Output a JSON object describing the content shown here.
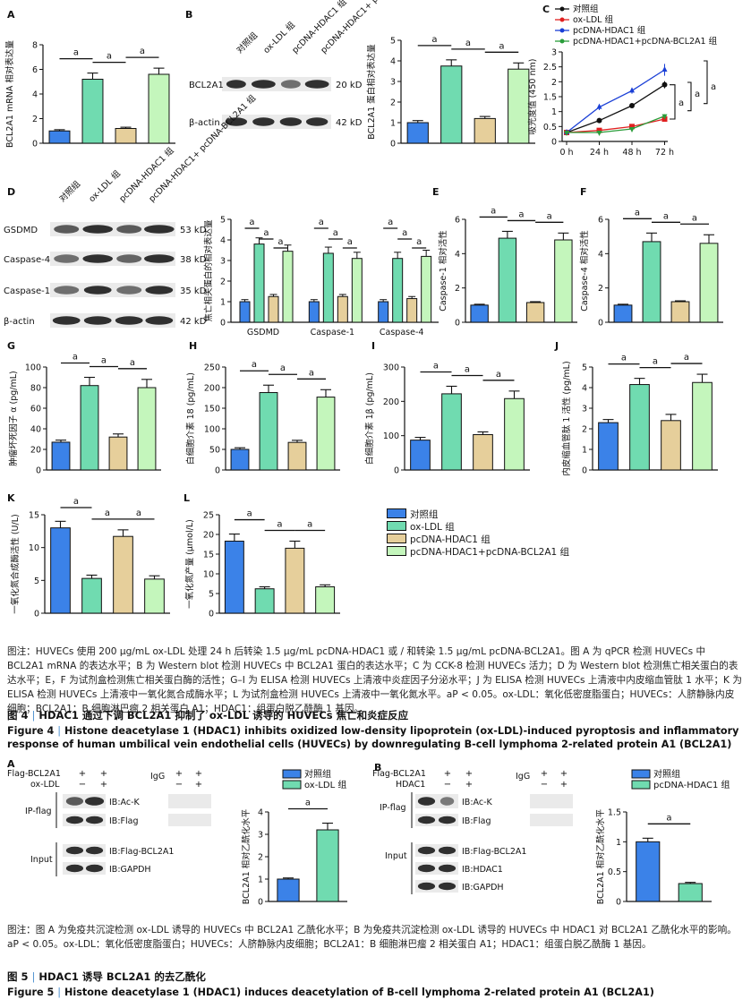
{
  "colors": {
    "control": "#3b82e8",
    "oxldl": "#70dbb0",
    "hdac1": "#e6cf9b",
    "hdac1_bcl2a1": "#c4f6bc",
    "ink": "#111111"
  },
  "fig4": {
    "panel_letters": [
      "A",
      "B",
      "C",
      "D",
      "E",
      "F",
      "G",
      "H",
      "I",
      "J",
      "K",
      "L"
    ],
    "group_labels": [
      "对照组",
      "ox-LDL 组",
      "pcDNA-HDAC1 组",
      "pcDNA-HDAC1+ pcDNA-BCL2A1 组"
    ],
    "panelB_proteins": [
      "BCL2A1",
      "β-actin"
    ],
    "panelB_kd": [
      "20 kD",
      "42 kD"
    ],
    "panelD_proteins": [
      "GSDMD",
      "Caspase-4",
      "Caspase-1",
      "β-actin"
    ],
    "panelD_kd": [
      "53 kD",
      "38 kD",
      "35 kD",
      "42 kD"
    ],
    "sig_mark": "a",
    "legend": [
      "对照组",
      "ox-LDL 组",
      "pcDNA-HDAC1 组",
      "pcDNA-HDAC1+pcDNA-BCL2A1 组"
    ],
    "caption": "图注：HUVECs 使用 200 μg/mL ox-LDL 处理 24 h 后转染 1.5 μg/mL pcDNA-HDAC1 或 / 和转染 1.5 μg/mL pcDNA-BCL2A1。图 A 为 qPCR 检测 HUVECs 中 BCL2A1 mRNA 的表达水平；B 为 Western blot 检测 HUVECs 中 BCL2A1 蛋白的表达水平；C 为 CCK-8 检测 HUVECs 活力；D 为 Western blot 检测焦亡相关蛋白的表达水平；E，F 为试剂盒检测焦亡相关蛋白酶的活性；G–I 为 ELISA 检测 HUVECs 上清液中炎症因子分泌水平；J 为 ELISA 检测 HUVECs 上清液中内皮缩血管肽 1 水平；K 为 ELISA 检测 HUVECs 上清液中一氧化氮合成酶水平；L 为试剂盒检测 HUVECs 上清液中一氧化氮水平。aP < 0.05。ox-LDL：氧化低密度脂蛋白；HUVECs：人脐静脉内皮细胞；BCL2A1：B 细胞淋巴瘤 2 相关蛋白 A1；HDAC1：组蛋白脱乙酰酶 1 基因。",
    "title_num": "图 4",
    "title_cn": "HDAC1 通过下调 BCL2A1 抑制了 ox-LDL 诱导的 HUVECs 焦亡和炎症反应",
    "title_en_num": "Figure 4",
    "title_en": "Histone deacetylase 1 (HDAC1) inhibits oxidized low-density lipoprotein (ox-LDL)-induced pyroptosis and inflammatory response of human umbilical vein endothelial cells (HUVECs) by downregulating B-cell lymphoma 2-related protein A1 (BCL2A1)"
  },
  "fig5": {
    "panel_letters": [
      "A",
      "B"
    ],
    "A": {
      "row_labels": [
        "Flag-BCL2A1",
        "ox-LDL"
      ],
      "signs_main": [
        [
          "+",
          "+"
        ],
        [
          "−",
          "+"
        ]
      ],
      "igg_label": "IgG",
      "signs_igg": [
        [
          "+",
          "+"
        ],
        [
          "−",
          "+"
        ]
      ],
      "ip_label": "IP-flag",
      "input_label": "Input",
      "ib_labels": [
        "IB:Ac-K",
        "IB:Flag",
        "IB:Flag-BCL2A1",
        "IB:GAPDH"
      ],
      "legend": [
        "对照组",
        "ox-LDL 组"
      ]
    },
    "B": {
      "row_labels": [
        "Flag-BCL2A1",
        "HDAC1"
      ],
      "signs_main": [
        [
          "+",
          "+"
        ],
        [
          "−",
          "+"
        ]
      ],
      "igg_label": "IgG",
      "signs_igg": [
        [
          "+",
          "+"
        ],
        [
          "−",
          "+"
        ]
      ],
      "ip_label": "IP-flag",
      "input_label": "Input",
      "ib_labels": [
        "IB:Ac-K",
        "IB:Flag",
        "IB:Flag-BCL2A1",
        "IB:HDAC1",
        "IB:GAPDH"
      ],
      "legend": [
        "对照组",
        "pcDNA-HDAC1 组"
      ]
    },
    "caption": "图注：图 A 为免疫共沉淀检测 ox-LDL 诱导的 HUVECs 中 BCL2A1 乙酰化水平；B 为免疫共沉淀检测 ox-LDL 诱导的 HUVECs 中 HDAC1 对 BCL2A1 乙酰化水平的影响。aP < 0.05。ox-LDL：氧化低密度脂蛋白；HUVECs：人脐静脉内皮细胞；BCL2A1：B 细胞淋巴瘤 2 相关蛋白 A1；HDAC1：组蛋白脱乙酰酶 1 基因。",
    "title_num": "图 5",
    "title_cn": "HDAC1 诱导 BCL2A1 的去乙酰化",
    "title_en_num": "Figure 5",
    "title_en": "Histone deacetylase 1 (HDAC1) induces deacetylation of B-cell lymphoma 2-related protein A1 (BCL2A1)"
  },
  "chart_data": [
    {
      "panel": "A",
      "type": "bar",
      "categories": [
        "对照组",
        "ox-LDL 组",
        "pcDNA-HDAC1 组",
        "pcDNA-HDAC1+pcDNA-BCL2A1 组"
      ],
      "values": [
        1.0,
        5.2,
        1.2,
        5.6
      ],
      "errors": [
        0.1,
        0.5,
        0.1,
        0.5
      ],
      "ylabel": "BCL2A1 mRNA 相对表达量",
      "ylim": [
        0,
        8
      ],
      "yticks": [
        0,
        2,
        4,
        6,
        8
      ],
      "sig": [
        [
          0,
          1
        ],
        [
          1,
          2
        ],
        [
          2,
          3
        ]
      ]
    },
    {
      "panel": "B",
      "type": "bar",
      "categories": [
        "对照组",
        "ox-LDL 组",
        "pcDNA-HDAC1 组",
        "pcDNA-HDAC1+pcDNA-BCL2A1 组"
      ],
      "values": [
        1.0,
        3.75,
        1.2,
        3.6
      ],
      "errors": [
        0.1,
        0.3,
        0.1,
        0.3
      ],
      "ylabel": "BCL2A1 蛋白相对表达量",
      "ylim": [
        0,
        5
      ],
      "yticks": [
        0,
        1,
        2,
        3,
        4,
        5
      ],
      "sig": [
        [
          0,
          1
        ],
        [
          1,
          2
        ],
        [
          2,
          3
        ]
      ]
    },
    {
      "panel": "C",
      "type": "line",
      "x": [
        "0 h",
        "24 h",
        "48 h",
        "72 h"
      ],
      "series": [
        {
          "name": "对照组",
          "values": [
            0.3,
            0.7,
            1.2,
            1.9
          ],
          "errors": [
            0.03,
            0.06,
            0.08,
            0.12
          ],
          "marker": "circle",
          "color": "#111111"
        },
        {
          "name": "ox-LDL 组",
          "values": [
            0.3,
            0.37,
            0.5,
            0.75
          ],
          "errors": [
            0.03,
            0.04,
            0.04,
            0.06
          ],
          "marker": "square",
          "color": "#e02020"
        },
        {
          "name": "pcDNA-HDAC1 组",
          "values": [
            0.3,
            1.15,
            1.7,
            2.4
          ],
          "errors": [
            0.03,
            0.1,
            0.1,
            0.2
          ],
          "marker": "triangle",
          "color": "#1a3fd6"
        },
        {
          "name": "pcDNA-HDAC1+pcDNA-BCL2A1 组",
          "values": [
            0.3,
            0.3,
            0.42,
            0.85
          ],
          "errors": [
            0.03,
            0.03,
            0.04,
            0.06
          ],
          "marker": "triangle-down",
          "color": "#2a9d3a"
        }
      ],
      "ylabel": "吸光度值 (450 nm)",
      "ylim": [
        0,
        3
      ],
      "yticks": [
        0,
        0.5,
        1.0,
        1.5,
        2.0,
        2.5,
        3.0
      ],
      "brackets": [
        "a",
        "a",
        "a"
      ]
    },
    {
      "panel": "D",
      "type": "bar",
      "categories": [
        "GSDMD",
        "Caspase-1",
        "Caspase-4"
      ],
      "series": [
        {
          "name": "对照组",
          "values": [
            1.0,
            1.0,
            1.0
          ]
        },
        {
          "name": "ox-LDL 组",
          "values": [
            3.8,
            3.35,
            3.1
          ]
        },
        {
          "name": "pcDNA-HDAC1 组",
          "values": [
            1.25,
            1.25,
            1.15
          ]
        },
        {
          "name": "pcDNA-HDAC1+pcDNA-BCL2A1 组",
          "values": [
            3.45,
            3.1,
            3.2
          ]
        }
      ],
      "errors": [
        [
          0.1,
          0.3,
          0.1,
          0.3
        ],
        [
          0.1,
          0.3,
          0.1,
          0.3
        ],
        [
          0.1,
          0.3,
          0.1,
          0.3
        ]
      ],
      "ylabel": "焦亡相关蛋白的相对表达量",
      "ylim": [
        0,
        5
      ],
      "yticks": [
        0,
        1,
        2,
        3,
        4,
        5
      ]
    },
    {
      "panel": "E",
      "type": "bar",
      "categories": [
        "对照组",
        "ox-LDL 组",
        "pcDNA-HDAC1 组",
        "pcDNA-HDAC1+pcDNA-BCL2A1 组"
      ],
      "values": [
        1.0,
        4.9,
        1.15,
        4.8
      ],
      "errors": [
        0.05,
        0.4,
        0.05,
        0.4
      ],
      "ylabel": "Caspase-1 相对活性",
      "ylim": [
        0,
        6
      ],
      "yticks": [
        0,
        2,
        4,
        6
      ],
      "sig": [
        [
          0,
          1
        ],
        [
          1,
          2
        ],
        [
          2,
          3
        ]
      ]
    },
    {
      "panel": "F",
      "type": "bar",
      "categories": [
        "对照组",
        "ox-LDL 组",
        "pcDNA-HDAC1 组",
        "pcDNA-HDAC1+pcDNA-BCL2A1 组"
      ],
      "values": [
        1.0,
        4.7,
        1.2,
        4.6
      ],
      "errors": [
        0.05,
        0.5,
        0.05,
        0.5
      ],
      "ylabel": "Caspase-4 相对活性",
      "ylim": [
        0,
        6
      ],
      "yticks": [
        0,
        2,
        4,
        6
      ],
      "sig": [
        [
          0,
          1
        ],
        [
          1,
          2
        ],
        [
          2,
          3
        ]
      ]
    },
    {
      "panel": "G",
      "type": "bar",
      "categories": [
        "对照组",
        "ox-LDL 组",
        "pcDNA-HDAC1 组",
        "pcDNA-HDAC1+pcDNA-BCL2A1 组"
      ],
      "values": [
        27,
        82,
        32,
        80
      ],
      "errors": [
        2,
        8,
        3,
        8
      ],
      "ylabel": "肿瘤坏死因子 α (pg/mL)",
      "ylim": [
        0,
        100
      ],
      "yticks": [
        0,
        20,
        40,
        60,
        80,
        100
      ],
      "sig": [
        [
          0,
          1
        ],
        [
          1,
          2
        ],
        [
          2,
          3
        ]
      ]
    },
    {
      "panel": "H",
      "type": "bar",
      "categories": [
        "对照组",
        "ox-LDL 组",
        "pcDNA-HDAC1 组",
        "pcDNA-HDAC1+pcDNA-BCL2A1 组"
      ],
      "values": [
        50,
        188,
        67,
        177
      ],
      "errors": [
        4,
        18,
        5,
        18
      ],
      "ylabel": "白细胞介素 18 (pg/mL)",
      "ylim": [
        0,
        250
      ],
      "yticks": [
        0,
        50,
        100,
        150,
        200,
        250
      ],
      "sig": [
        [
          0,
          1
        ],
        [
          1,
          2
        ],
        [
          2,
          3
        ]
      ]
    },
    {
      "panel": "I",
      "type": "bar",
      "categories": [
        "对照组",
        "ox-LDL 组",
        "pcDNA-HDAC1 组",
        "pcDNA-HDAC1+pcDNA-BCL2A1 组"
      ],
      "values": [
        87,
        222,
        103,
        208
      ],
      "errors": [
        8,
        22,
        8,
        22
      ],
      "ylabel": "白细胞介素 1β (pg/mL)",
      "ylim": [
        0,
        300
      ],
      "yticks": [
        0,
        100,
        200,
        300
      ],
      "sig": [
        [
          0,
          1
        ],
        [
          1,
          2
        ],
        [
          2,
          3
        ]
      ]
    },
    {
      "panel": "J",
      "type": "bar",
      "categories": [
        "对照组",
        "ox-LDL 组",
        "pcDNA-HDAC1 组",
        "pcDNA-HDAC1+pcDNA-BCL2A1 组"
      ],
      "values": [
        2.3,
        4.15,
        2.4,
        4.25
      ],
      "errors": [
        0.15,
        0.3,
        0.3,
        0.4
      ],
      "ylabel": "内皮缩血管肽 1 活性 (pg/mL)",
      "ylim": [
        0,
        5
      ],
      "yticks": [
        0,
        1,
        2,
        3,
        4,
        5
      ],
      "sig": [
        [
          0,
          1
        ],
        [
          1,
          2
        ],
        [
          2,
          3
        ]
      ]
    },
    {
      "panel": "K",
      "type": "bar",
      "categories": [
        "对照组",
        "ox-LDL 组",
        "pcDNA-HDAC1 组",
        "pcDNA-HDAC1+pcDNA-BCL2A1 组"
      ],
      "values": [
        13.0,
        5.3,
        11.7,
        5.2
      ],
      "errors": [
        1.0,
        0.5,
        1.0,
        0.5
      ],
      "ylabel": "一氧化氮合成酶活性 (U/L)",
      "ylim": [
        0,
        15
      ],
      "yticks": [
        0,
        5,
        10,
        15
      ],
      "sig": [
        [
          0,
          1
        ],
        [
          1,
          2
        ],
        [
          2,
          3
        ]
      ]
    },
    {
      "panel": "L",
      "type": "bar",
      "categories": [
        "对照组",
        "ox-LDL 组",
        "pcDNA-HDAC1 组",
        "pcDNA-HDAC1+pcDNA-BCL2A1 组"
      ],
      "values": [
        18.3,
        6.2,
        16.5,
        6.7
      ],
      "errors": [
        1.8,
        0.5,
        1.8,
        0.5
      ],
      "ylabel": "一氧化氮产量 (μmol/L)",
      "ylim": [
        0,
        25
      ],
      "yticks": [
        0,
        5,
        10,
        15,
        20,
        25
      ],
      "sig": [
        [
          0,
          1
        ],
        [
          1,
          2
        ],
        [
          2,
          3
        ]
      ]
    },
    {
      "panel": "5A",
      "type": "bar",
      "categories": [
        "对照组",
        "ox-LDL 组"
      ],
      "values": [
        1.0,
        3.2
      ],
      "errors": [
        0.05,
        0.3
      ],
      "ylabel": "BCL2A1 相对乙酰化水平",
      "ylim": [
        0,
        4
      ],
      "yticks": [
        0,
        1,
        2,
        3,
        4
      ],
      "sig": [
        [
          0,
          1
        ]
      ]
    },
    {
      "panel": "5B",
      "type": "bar",
      "categories": [
        "对照组",
        "pcDNA-HDAC1 组"
      ],
      "values": [
        1.0,
        0.3
      ],
      "errors": [
        0.06,
        0.02
      ],
      "ylabel": "BCL2A1 相对乙酰化水平",
      "ylim": [
        0,
        1.5
      ],
      "yticks": [
        0,
        0.5,
        1.0,
        1.5
      ],
      "sig": [
        [
          0,
          1
        ]
      ]
    }
  ]
}
